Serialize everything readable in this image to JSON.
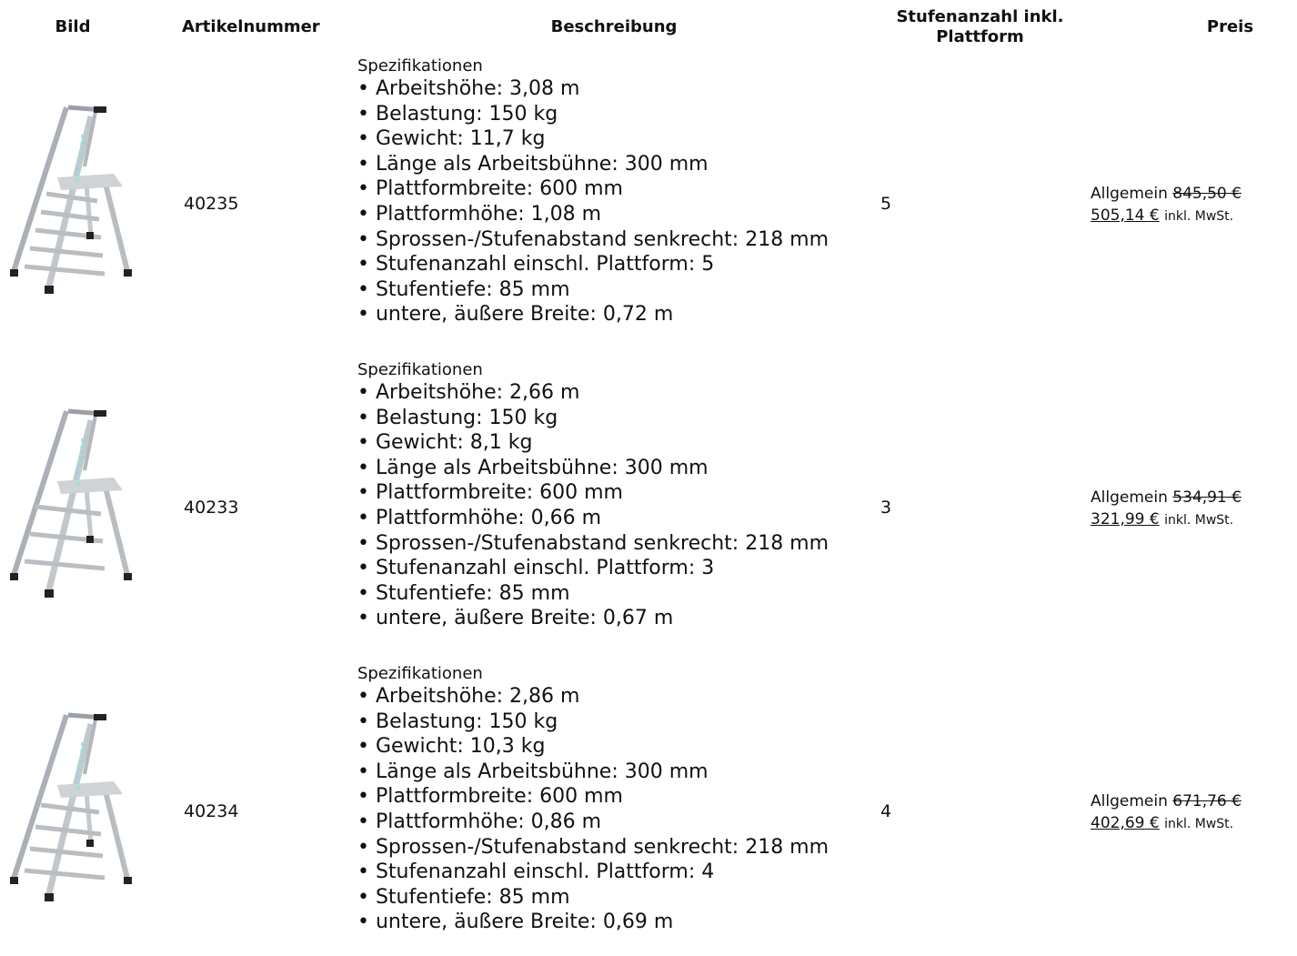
{
  "header": {
    "columns": [
      "Bild",
      "Artikelnummer",
      "Beschreibung",
      "Stufenanzahl inkl. Plattform",
      "Preis"
    ]
  },
  "table": {
    "rows": [
      {
        "article": "40235",
        "description": {
          "heading": "Spezifikationen",
          "items": [
            "• Arbeitshöhe: 3,08 m",
            "• Belastung: 150 kg",
            "• Gewicht: 11,7 kg",
            "• Länge als Arbeitsbühne: 300 mm",
            "• Plattformbreite: 600 mm",
            "• Plattformhöhe: 1,08 m",
            "• Sprossen-/Stufenabstand senkrecht: 218 mm",
            "• Stufenanzahl einschl. Plattform: 5",
            "• Stufentiefe: 85 mm",
            "• untere, äußere Breite: 0,72 m"
          ]
        },
        "steps": "5",
        "price": {
          "label": "Allgemein",
          "old": "845,50 €",
          "new": "505,14 €",
          "note": "inkl. MwSt."
        }
      },
      {
        "article": "40233",
        "description": {
          "heading": "Spezifikationen",
          "items": [
            "• Arbeitshöhe: 2,66 m",
            "• Belastung: 150 kg",
            "• Gewicht: 8,1 kg",
            "• Länge als Arbeitsbühne: 300 mm",
            "• Plattformbreite: 600 mm",
            "• Plattformhöhe: 0,66 m",
            "• Sprossen-/Stufenabstand senkrecht: 218 mm",
            "• Stufenanzahl einschl. Plattform: 3",
            "• Stufentiefe: 85 mm",
            "• untere, äußere Breite: 0,67 m"
          ]
        },
        "steps": "3",
        "price": {
          "label": "Allgemein",
          "old": "534,91 €",
          "new": "321,99 €",
          "note": "inkl. MwSt."
        }
      },
      {
        "article": "40234",
        "description": {
          "heading": "Spezifikationen",
          "items": [
            "• Arbeitshöhe: 2,86 m",
            "• Belastung: 150 kg",
            "• Gewicht: 10,3 kg",
            "• Länge als Arbeitsbühne: 300 mm",
            "• Plattformbreite: 600 mm",
            "• Plattformhöhe: 0,86 m",
            "• Sprossen-/Stufenabstand senkrecht: 218 mm",
            "• Stufenanzahl einschl. Plattform: 4",
            "• Stufentiefe: 85 mm",
            "• untere, äußere Breite: 0,69 m"
          ]
        },
        "steps": "4",
        "price": {
          "label": "Allgemein",
          "old": "671,76 €",
          "new": "402,69 €",
          "note": "inkl. MwSt."
        }
      }
    ]
  }
}
